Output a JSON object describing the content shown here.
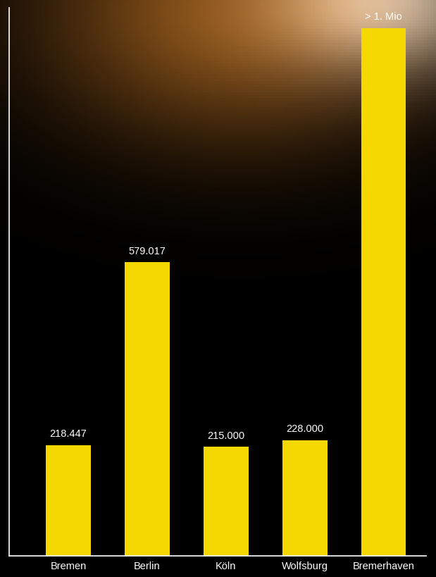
{
  "chart_data": {
    "type": "bar",
    "categories": [
      "Bremen",
      "Berlin",
      "Köln",
      "Wolfsburg",
      "Bremerhaven"
    ],
    "values": [
      218447,
      579017,
      215000,
      228000,
      1040000
    ],
    "value_labels": [
      "218.447",
      "579.017",
      "215.000",
      "228.000",
      "> 1. Mio"
    ],
    "color": "#f5d800",
    "ylim": [
      0,
      1080000
    ],
    "data_labels": true,
    "tick_labels": "x",
    "grid": false
  }
}
